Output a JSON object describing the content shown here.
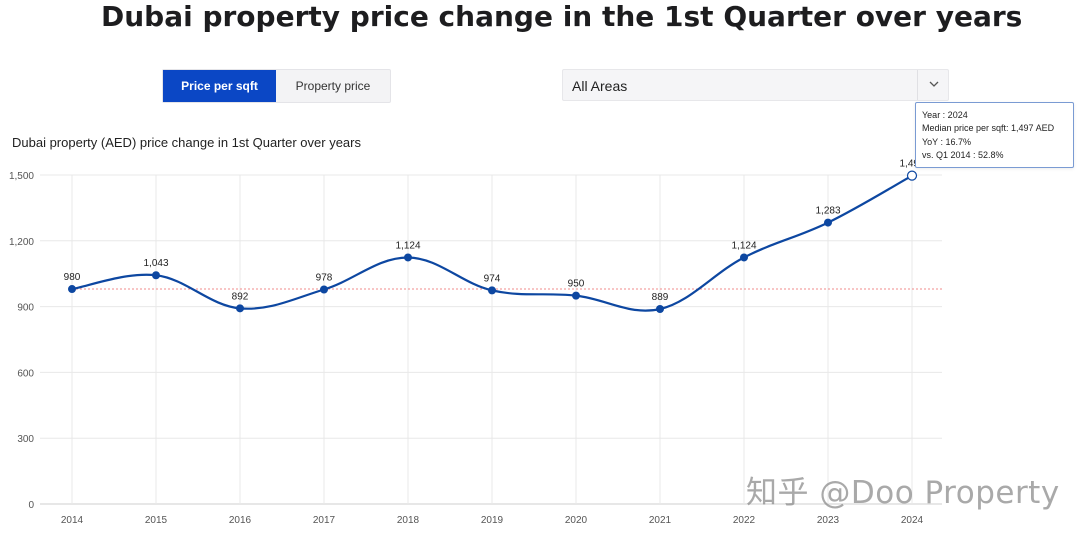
{
  "page": {
    "title": "Dubai property price change in the 1st Quarter over years"
  },
  "toggle": {
    "active_label": "Price per sqft",
    "inactive_label": "Property price"
  },
  "area_select": {
    "value": "All Areas"
  },
  "tooltip": {
    "year": "Year : 2024",
    "median": "Median price per sqft: 1,497 AED",
    "yoy": "YoY : 16.7%",
    "vs_q1_2014": "vs. Q1 2014 : 52.8%"
  },
  "watermark": "知乎 @Doo Property",
  "colors": {
    "line": "#0d47a1",
    "accent_button": "#0b47c5",
    "reference_line": "#f28b8b",
    "grid": "#e8e8e8"
  },
  "chart_data": {
    "type": "line",
    "title": "Dubai property (AED) price change in 1st Quarter over years",
    "categories": [
      "2014",
      "2015",
      "2016",
      "2017",
      "2018",
      "2019",
      "2020",
      "2021",
      "2022",
      "2023",
      "2024"
    ],
    "values": [
      980,
      1043,
      892,
      978,
      1124,
      974,
      950,
      889,
      1124,
      1283,
      1497
    ],
    "data_labels": [
      "980",
      "1,043",
      "892",
      "978",
      "1,124",
      "974",
      "950",
      "889",
      "1,124",
      "1,283",
      "1,497"
    ],
    "yticks": [
      0,
      300,
      600,
      900,
      1200,
      1500
    ],
    "ytick_labels": [
      "0",
      "300",
      "600",
      "900",
      "1,200",
      "1,500"
    ],
    "ylim": [
      0,
      1500
    ],
    "reference_value": 980,
    "highlighted_category": "2024",
    "grid": true,
    "xlabel": "",
    "ylabel": ""
  }
}
